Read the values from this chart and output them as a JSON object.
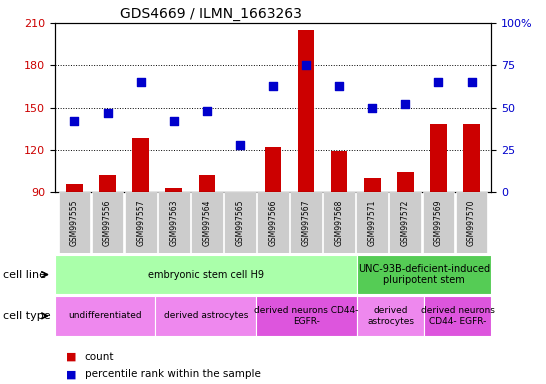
{
  "title": "GDS4669 / ILMN_1663263",
  "samples": [
    "GSM997555",
    "GSM997556",
    "GSM997557",
    "GSM997563",
    "GSM997564",
    "GSM997565",
    "GSM997566",
    "GSM997567",
    "GSM997568",
    "GSM997571",
    "GSM997572",
    "GSM997569",
    "GSM997570"
  ],
  "counts": [
    96,
    102,
    128,
    93,
    102,
    87,
    122,
    205,
    119,
    100,
    104,
    138,
    138
  ],
  "percentile": [
    42,
    47,
    65,
    42,
    48,
    28,
    63,
    75,
    63,
    50,
    52,
    65,
    65
  ],
  "ylim_left": [
    90,
    210
  ],
  "ylim_right": [
    0,
    100
  ],
  "yticks_left": [
    90,
    120,
    150,
    180,
    210
  ],
  "yticks_right": [
    0,
    25,
    50,
    75,
    100
  ],
  "bar_color": "#cc0000",
  "dot_color": "#0000cc",
  "bg_color": "#ffffff",
  "cell_line_segments": [
    {
      "text": "embryonic stem cell H9",
      "start": 0,
      "end": 8,
      "color": "#aaffaa"
    },
    {
      "text": "UNC-93B-deficient-induced\npluripotent stem",
      "start": 9,
      "end": 12,
      "color": "#55cc55"
    }
  ],
  "cell_type_segments": [
    {
      "text": "undifferentiated",
      "start": 0,
      "end": 2,
      "color": "#ee88ee"
    },
    {
      "text": "derived astrocytes",
      "start": 3,
      "end": 5,
      "color": "#ee88ee"
    },
    {
      "text": "derived neurons CD44-\nEGFR-",
      "start": 6,
      "end": 8,
      "color": "#dd55dd"
    },
    {
      "text": "derived\nastrocytes",
      "start": 9,
      "end": 10,
      "color": "#ee88ee"
    },
    {
      "text": "derived neurons\nCD44- EGFR-",
      "start": 11,
      "end": 12,
      "color": "#dd55dd"
    }
  ],
  "cell_line_label": "cell line",
  "cell_type_label": "cell type",
  "legend_count": "count",
  "legend_percentile": "percentile rank within the sample"
}
